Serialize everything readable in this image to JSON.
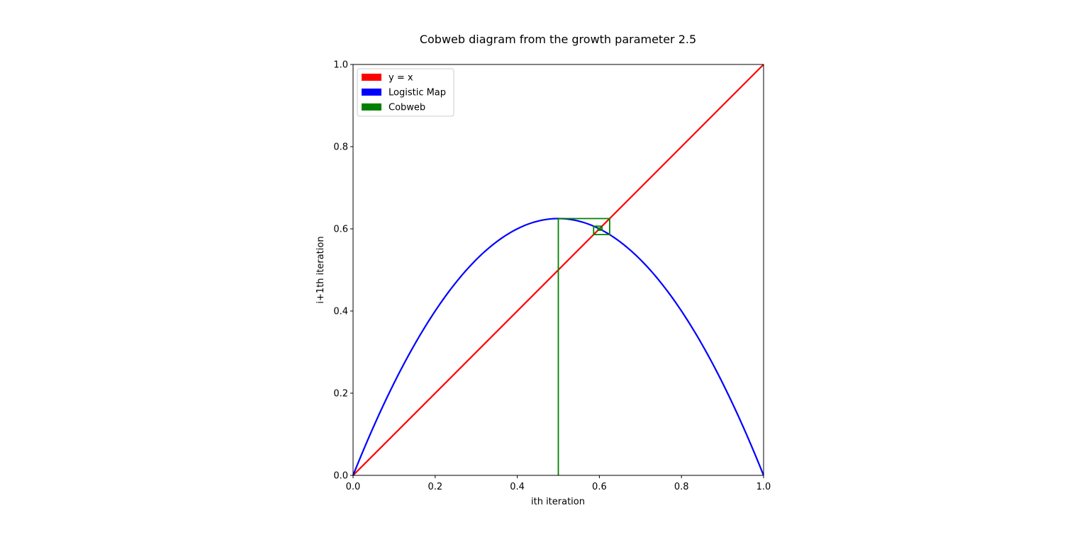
{
  "chart_data": {
    "type": "line",
    "title": "Cobweb diagram from the growth parameter 2.5",
    "xlabel": "ith iteration",
    "ylabel": "i+1th iteration",
    "xlim": [
      0,
      1
    ],
    "ylim": [
      0,
      1
    ],
    "xticks": [
      "0.0",
      "0.2",
      "0.4",
      "0.6",
      "0.8",
      "1.0"
    ],
    "yticks": [
      "0.0",
      "0.2",
      "0.4",
      "0.6",
      "0.8",
      "1.0"
    ],
    "grid": false,
    "legend_position": "top-left",
    "growth_parameter": 2.5,
    "series": [
      {
        "name": "y = x",
        "color": "#ff0000",
        "kind": "identity",
        "x": [
          0,
          1
        ],
        "y": [
          0,
          1
        ]
      },
      {
        "name": "Logistic Map",
        "color": "#0000ff",
        "kind": "logistic",
        "x_range": [
          0,
          1
        ],
        "r": 2.5
      },
      {
        "name": "Cobweb",
        "color": "#008000",
        "kind": "cobweb",
        "x": [
          0.5,
          0.5,
          0.625,
          0.625,
          0.586,
          0.586,
          0.6065,
          0.6065,
          0.5966,
          0.5966,
          0.6017,
          0.6017,
          0.5992,
          0.5992,
          0.6004,
          0.6004,
          0.5998
        ],
        "y": [
          0,
          0.625,
          0.625,
          0.586,
          0.586,
          0.6065,
          0.6065,
          0.5966,
          0.5966,
          0.6017,
          0.6017,
          0.5992,
          0.5992,
          0.6004,
          0.6004,
          0.5998,
          0.5998
        ]
      }
    ]
  }
}
